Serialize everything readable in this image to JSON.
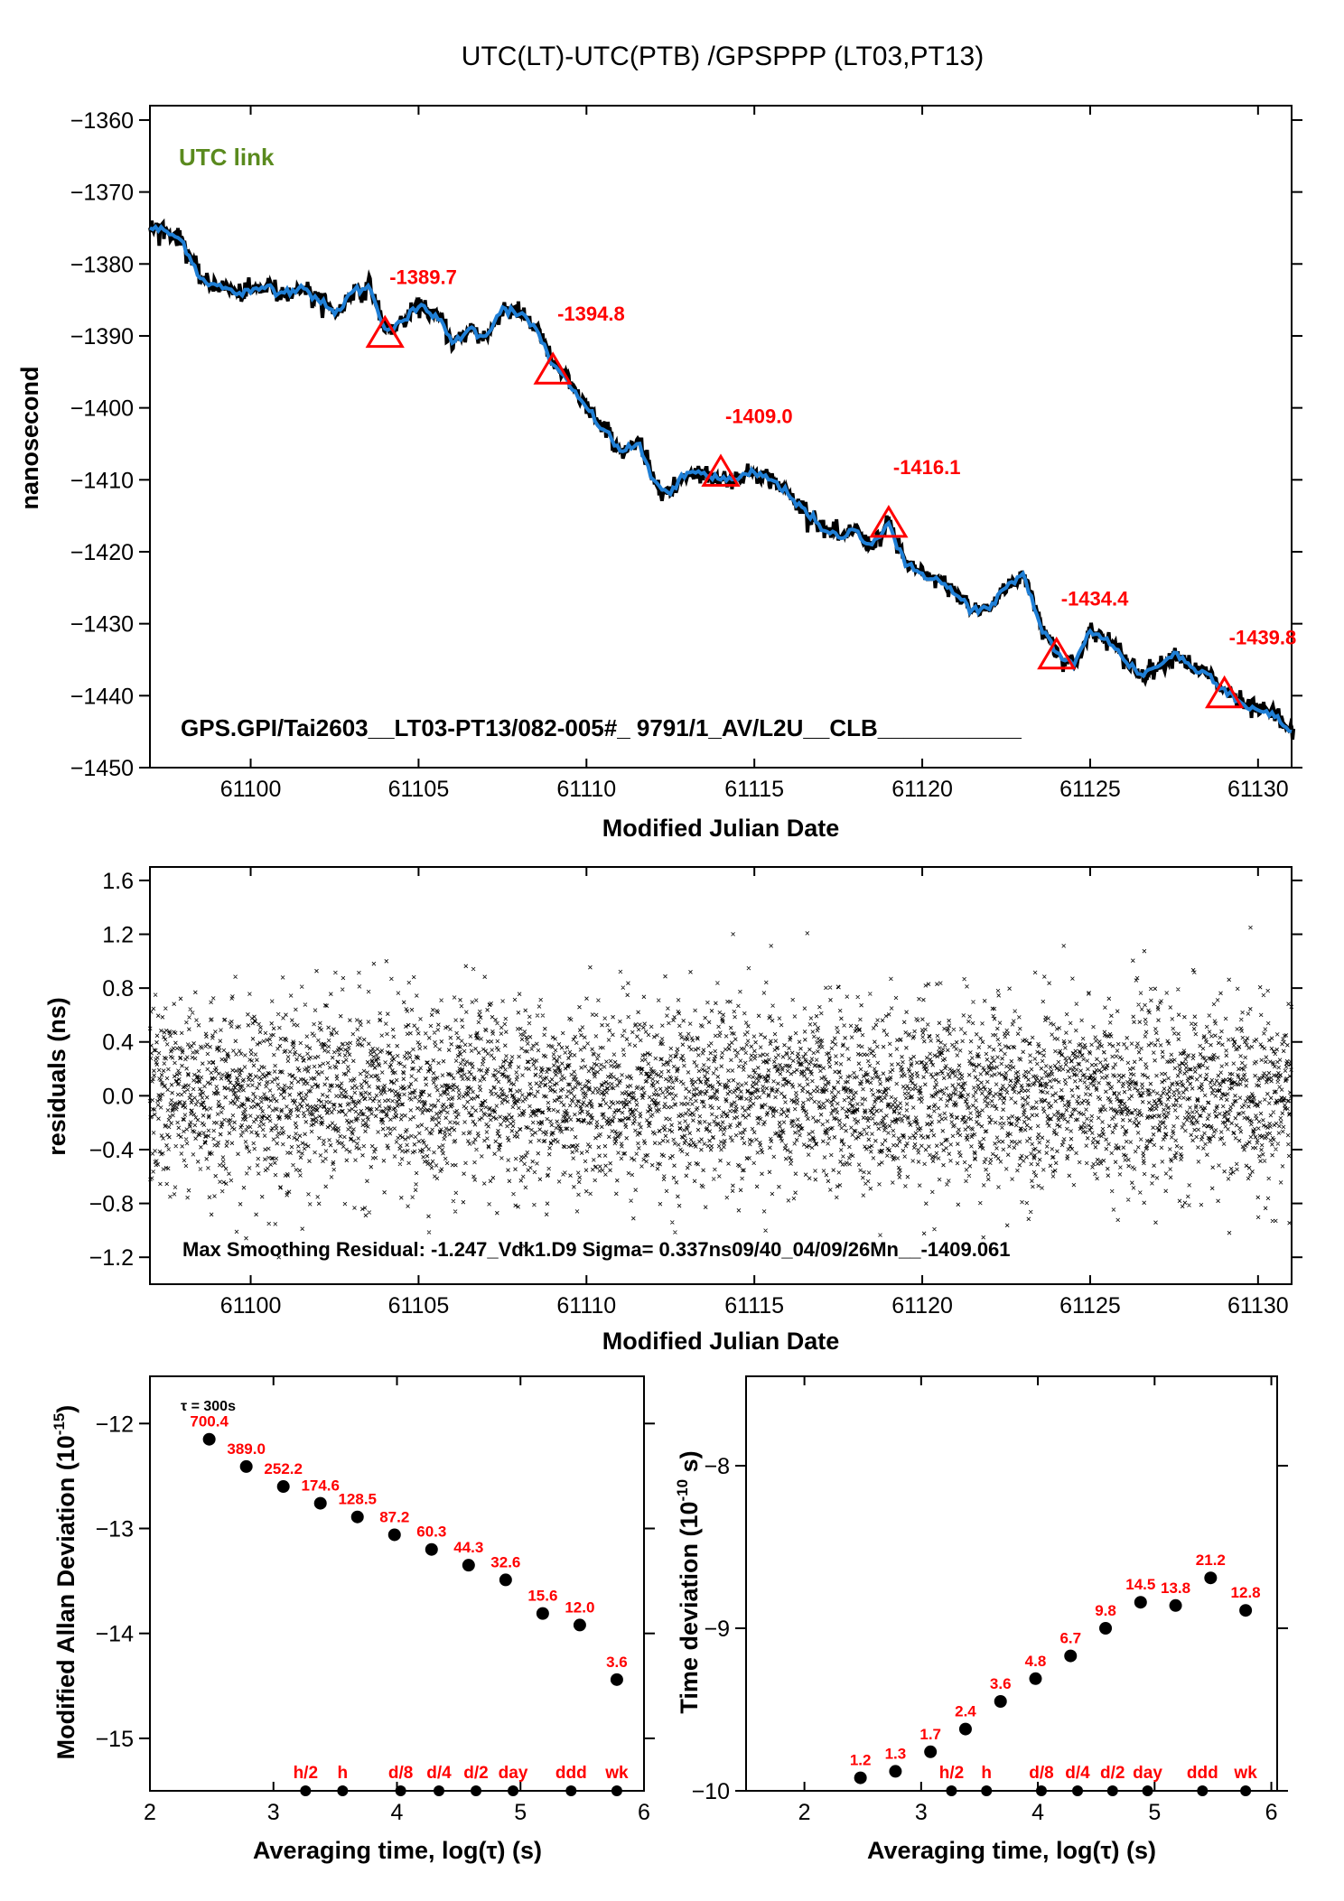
{
  "title": "UTC(LT)-UTC(PTB)  /GPSPPP  (LT03,PT13)",
  "colors": {
    "accent": "#ff0000",
    "series": "#1f7fd6",
    "raw": "#000000",
    "link": "#5a8a1e"
  },
  "chart_data": [
    {
      "type": "line",
      "panel": "top",
      "xlabel": "Modified Julian Date",
      "ylabel": "nanosecond",
      "xlim": [
        61097,
        61131
      ],
      "ylim": [
        -1450,
        -1358
      ],
      "xticks": [
        "61100",
        "61105",
        "61110",
        "61115",
        "61120",
        "61125",
        "61130"
      ],
      "yticks": [
        "-1360",
        "-1370",
        "-1380",
        "-1390",
        "-1400",
        "-1410",
        "-1420",
        "-1430",
        "-1440",
        "-1450"
      ],
      "tag": "UTC link",
      "footer": "GPS.GPI/Tai2603__LT03-PT13/082-005#_  9791/1_AV/L2U__CLB___________",
      "series_x": [
        61097,
        61097.5,
        61098,
        61098.5,
        61099,
        61099.5,
        61100,
        61100.5,
        61101,
        61101.5,
        61102,
        61102.5,
        61103,
        61103.5,
        61104,
        61104.5,
        61105,
        61105.5,
        61106,
        61106.5,
        61107,
        61107.5,
        61108,
        61108.5,
        61109,
        61109.5,
        61110,
        61110.5,
        61111,
        61111.5,
        61112,
        61112.5,
        61113,
        61113.5,
        61114,
        61114.5,
        61115,
        61115.5,
        61116,
        61116.5,
        61117,
        61117.5,
        61118,
        61118.5,
        61119,
        61119.5,
        61120,
        61120.5,
        61121,
        61121.5,
        61122,
        61122.5,
        61123,
        61123.5,
        61124,
        61124.5,
        61125,
        61125.5,
        61126,
        61126.5,
        61127,
        61127.5,
        61128,
        61128.5,
        61129,
        61129.5,
        61130,
        61130.5,
        61131
      ],
      "series_y": [
        -1375,
        -1375.5,
        -1377,
        -1382,
        -1383,
        -1384,
        -1384,
        -1383,
        -1384,
        -1383,
        -1385,
        -1387,
        -1384,
        -1383,
        -1389,
        -1388,
        -1386,
        -1387,
        -1391,
        -1389,
        -1390,
        -1386,
        -1387,
        -1389,
        -1394,
        -1397,
        -1400,
        -1403,
        -1406,
        -1405,
        -1410,
        -1412,
        -1409,
        -1409,
        -1410,
        -1410,
        -1409,
        -1410,
        -1412,
        -1414,
        -1417,
        -1418,
        -1417,
        -1419,
        -1416,
        -1422,
        -1423,
        -1424,
        -1426,
        -1428,
        -1428,
        -1425,
        -1423,
        -1430,
        -1434,
        -1436,
        -1431,
        -1432,
        -1435,
        -1437,
        -1436,
        -1434,
        -1436,
        -1437,
        -1439,
        -1441,
        -1442,
        -1443,
        -1445
      ],
      "markers": [
        {
          "x": 61104,
          "y": -1389.7,
          "label": "-1389.7"
        },
        {
          "x": 61109,
          "y": -1394.8,
          "label": "-1394.8"
        },
        {
          "x": 61114,
          "y": -1409.0,
          "label": "-1409.0"
        },
        {
          "x": 61119,
          "y": -1416.1,
          "label": "-1416.1"
        },
        {
          "x": 61124,
          "y": -1434.4,
          "label": "-1434.4"
        },
        {
          "x": 61129,
          "y": -1439.8,
          "label": "-1439.8"
        }
      ]
    },
    {
      "type": "scatter",
      "panel": "middle",
      "xlabel": "Modified Julian Date",
      "ylabel": "residuals (ns)",
      "xlim": [
        61097,
        61131
      ],
      "ylim": [
        -1.4,
        1.7
      ],
      "xticks": [
        "61100",
        "61105",
        "61110",
        "61115",
        "61120",
        "61125",
        "61130"
      ],
      "yticks": [
        "1.6",
        "1.2",
        "0.8",
        "0.4",
        "0.0",
        "-0.4",
        "-0.8",
        "-1.2"
      ],
      "sigma_ns": 0.337,
      "footer": "Max Smoothing Residual: -1.247_Vdk1.D9  Sigma= 0.337ns09/40_04/09/26Mn__-1409.061"
    },
    {
      "type": "scatter",
      "panel": "bottom-left",
      "xlabel": "Averaging time, log(τ) (s)",
      "ylabel": "Modified Allan Deviation (10",
      "ylabel_sup": "-15",
      "ylabel_end": ")",
      "xlim": [
        2,
        6
      ],
      "ylim": [
        -15.5,
        -11.55
      ],
      "xticks": [
        "2",
        "3",
        "4",
        "5",
        "6"
      ],
      "yticks": [
        "-12",
        "-13",
        "-14",
        "-15"
      ],
      "tau_note": "τ = 300s",
      "x": [
        2.48,
        2.78,
        3.08,
        3.38,
        3.68,
        3.98,
        4.28,
        4.58,
        4.88,
        5.18,
        5.48,
        5.78
      ],
      "y": [
        -12.15,
        -12.41,
        -12.6,
        -12.76,
        -12.89,
        -13.06,
        -13.2,
        -13.35,
        -13.49,
        -13.81,
        -13.92,
        -14.44
      ],
      "labels": [
        "700.4",
        "389.0",
        "252.2",
        "174.6",
        "128.5",
        "87.2",
        "60.3",
        "44.3",
        "32.6",
        "15.6",
        "12.0",
        "3.6"
      ],
      "intervals": [
        {
          "x": 3.26,
          "label": "h/2"
        },
        {
          "x": 3.56,
          "label": "h"
        },
        {
          "x": 4.03,
          "label": "d/8"
        },
        {
          "x": 4.34,
          "label": "d/4"
        },
        {
          "x": 4.64,
          "label": "d/2"
        },
        {
          "x": 4.94,
          "label": "day"
        },
        {
          "x": 5.41,
          "label": "ddd"
        },
        {
          "x": 5.78,
          "label": "wk"
        }
      ]
    },
    {
      "type": "scatter",
      "panel": "bottom-right",
      "xlabel": "Averaging time, log(τ) (s)",
      "ylabel": "Time deviation (10",
      "ylabel_sup": "-10",
      "ylabel_end": " s)",
      "xlim": [
        1.5,
        6.05
      ],
      "ylim": [
        -10,
        -7.45
      ],
      "xticks": [
        "2",
        "3",
        "4",
        "5",
        "6"
      ],
      "yticks": [
        "-8",
        "-9",
        "-10"
      ],
      "x": [
        2.48,
        2.78,
        3.08,
        3.38,
        3.68,
        3.98,
        4.28,
        4.58,
        4.88,
        5.18,
        5.48,
        5.78
      ],
      "y": [
        -9.92,
        -9.88,
        -9.76,
        -9.62,
        -9.45,
        -9.31,
        -9.17,
        -9.0,
        -8.84,
        -8.86,
        -8.69,
        -8.89
      ],
      "labels": [
        "1.2",
        "1.3",
        "1.7",
        "2.4",
        "3.6",
        "4.8",
        "6.7",
        "9.8",
        "14.5",
        "13.8",
        "21.2",
        "12.8"
      ],
      "intervals": [
        {
          "x": 3.26,
          "label": "h/2"
        },
        {
          "x": 3.56,
          "label": "h"
        },
        {
          "x": 4.03,
          "label": "d/8"
        },
        {
          "x": 4.34,
          "label": "d/4"
        },
        {
          "x": 4.64,
          "label": "d/2"
        },
        {
          "x": 4.94,
          "label": "day"
        },
        {
          "x": 5.41,
          "label": "ddd"
        },
        {
          "x": 5.78,
          "label": "wk"
        }
      ]
    }
  ]
}
